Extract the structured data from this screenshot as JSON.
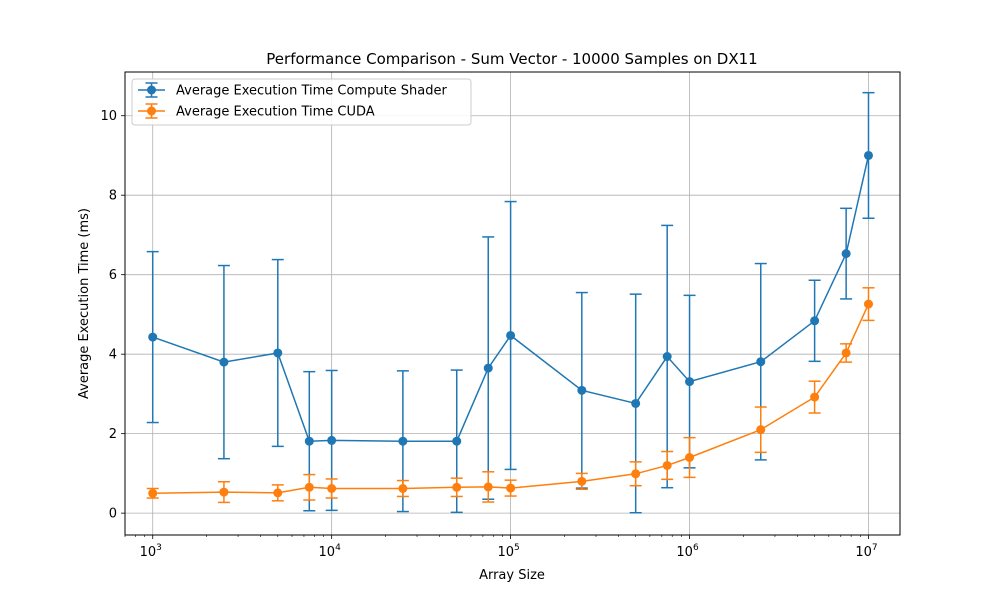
{
  "chart_data": {
    "type": "line",
    "title": "Performance Comparison - Sum Vector - 10000 Samples on DX11",
    "xlabel": "Array Size",
    "ylabel": "Average Execution Time (ms)",
    "xscale": "log",
    "xlim": [
      700,
      15000000
    ],
    "ylim": [
      -0.55,
      11.1
    ],
    "x_ticks": [
      1000,
      10000,
      100000,
      1000000,
      10000000
    ],
    "x_tick_labels": [
      {
        "base": "10",
        "exp": "3"
      },
      {
        "base": "10",
        "exp": "4"
      },
      {
        "base": "10",
        "exp": "5"
      },
      {
        "base": "10",
        "exp": "6"
      },
      {
        "base": "10",
        "exp": "7"
      }
    ],
    "y_ticks": [
      0,
      2,
      4,
      6,
      8,
      10
    ],
    "y_tick_labels": [
      "0",
      "2",
      "4",
      "6",
      "8",
      "10"
    ],
    "grid": true,
    "legend_position": "top-left",
    "x": [
      1000,
      2500,
      5000,
      7500,
      10000,
      25000,
      50000,
      75000,
      100000,
      250000,
      500000,
      750000,
      1000000,
      2500000,
      5000000,
      7500000,
      10000000
    ],
    "series": [
      {
        "name": "Average Execution Time Compute Shader",
        "color": "#1f77b4",
        "values": [
          4.43,
          3.8,
          4.03,
          1.81,
          1.83,
          1.81,
          1.81,
          3.65,
          4.47,
          3.09,
          2.76,
          3.94,
          3.31,
          3.81,
          4.84,
          6.53,
          9.0
        ],
        "err": [
          2.15,
          2.43,
          2.35,
          1.75,
          1.76,
          1.77,
          1.79,
          3.3,
          3.37,
          2.46,
          2.75,
          3.3,
          2.17,
          2.47,
          1.02,
          1.14,
          1.58
        ]
      },
      {
        "name": "Average Execution Time CUDA",
        "color": "#ff7f0e",
        "values": [
          0.5,
          0.53,
          0.51,
          0.65,
          0.62,
          0.62,
          0.65,
          0.66,
          0.63,
          0.8,
          0.99,
          1.2,
          1.4,
          2.1,
          2.92,
          4.03,
          5.26
        ],
        "err": [
          0.12,
          0.26,
          0.2,
          0.32,
          0.24,
          0.2,
          0.23,
          0.38,
          0.2,
          0.2,
          0.3,
          0.35,
          0.5,
          0.57,
          0.4,
          0.23,
          0.41
        ]
      }
    ]
  }
}
